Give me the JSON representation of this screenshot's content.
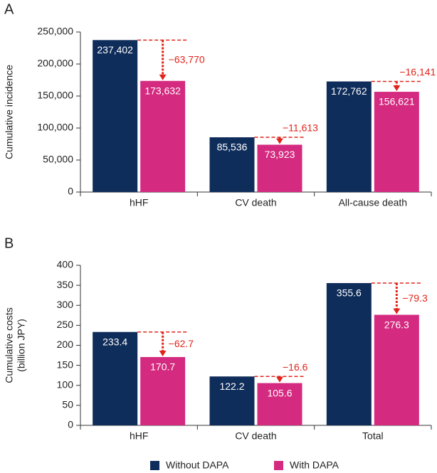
{
  "chart_data": [
    {
      "type": "bar",
      "panel_label": "A",
      "ylabel": [
        "Cumulative incidence"
      ],
      "categories": [
        "hHF",
        "CV death",
        "All-cause death"
      ],
      "series": [
        {
          "name": "Without DAPA",
          "color": "#0f2d5a",
          "values": [
            237402,
            85536,
            172762
          ],
          "value_labels": [
            "237,402",
            "85,536",
            "172,762"
          ]
        },
        {
          "name": "With DAPA",
          "color": "#d42a80",
          "values": [
            173632,
            73923,
            156621
          ],
          "value_labels": [
            "173,632",
            "73,923",
            "156,621"
          ]
        }
      ],
      "annotations": [
        "−63,770",
        "−11,613",
        "−16,141"
      ],
      "ylim": [
        0,
        250000
      ],
      "yticks": [
        0,
        {
          "value": 50000,
          "label": "50,000"
        },
        {
          "value": 100000,
          "label": "100,000"
        },
        {
          "value": 150000,
          "label": "150,000"
        },
        {
          "value": 200000,
          "label": "200,000"
        },
        {
          "value": 250000,
          "label": "250,000"
        }
      ]
    },
    {
      "type": "bar",
      "panel_label": "B",
      "ylabel": [
        "Cumulative costs",
        "(billion JPY)"
      ],
      "categories": [
        "hHF",
        "CV death",
        "Total"
      ],
      "series": [
        {
          "name": "Without DAPA",
          "color": "#0f2d5a",
          "values": [
            233.4,
            122.2,
            355.6
          ]
        },
        {
          "name": "With DAPA",
          "color": "#d42a80",
          "values": [
            170.7,
            105.6,
            276.3
          ]
        }
      ],
      "annotations": [
        "−62.7",
        "−16.6",
        "−79.3"
      ],
      "ylim": [
        0,
        400
      ],
      "yticks": [
        0,
        50,
        100,
        150,
        200,
        250,
        300,
        350,
        400
      ]
    }
  ]
}
